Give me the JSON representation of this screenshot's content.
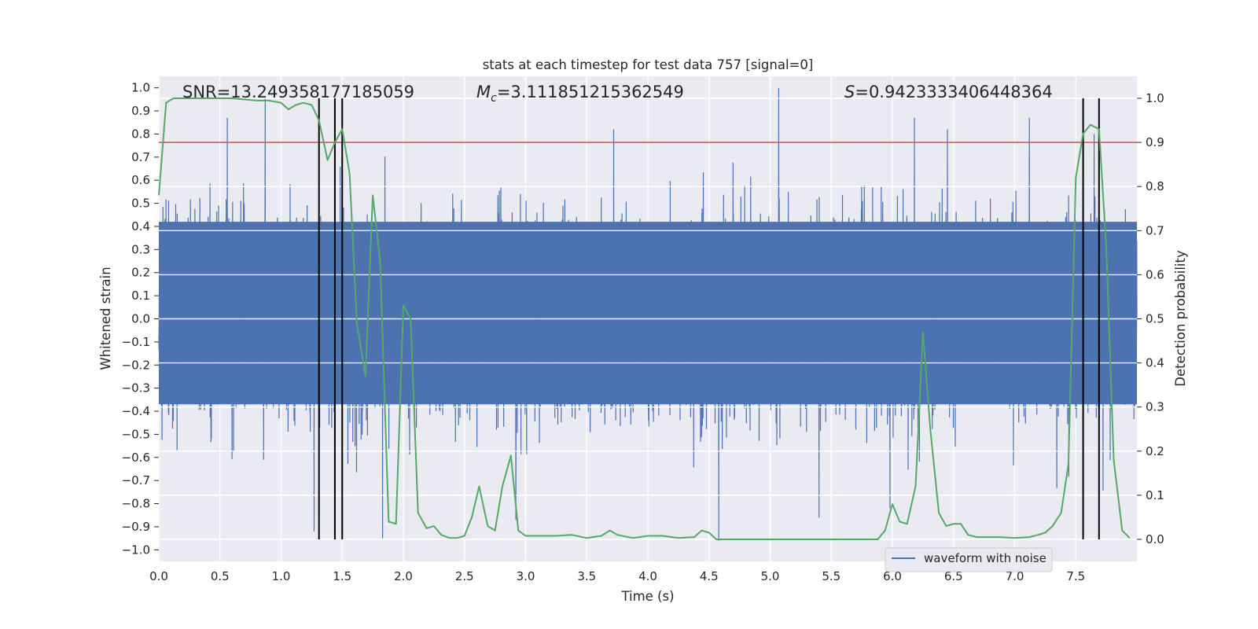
{
  "chart_data": {
    "type": "line",
    "title": "stats at each timestep for test data 757 [signal=0]",
    "xlabel": "Time (s)",
    "ylabel_left": "Whitened strain",
    "ylabel_right": "Detection probability",
    "xlim": [
      0.0,
      8.0
    ],
    "ylim_left": [
      -1.05,
      1.05
    ],
    "ylim_right": [
      -0.05,
      1.05
    ],
    "x_ticks": [
      "0.0",
      "0.5",
      "1.0",
      "1.5",
      "2.0",
      "2.5",
      "3.0",
      "3.5",
      "4.0",
      "4.5",
      "5.0",
      "5.5",
      "6.0",
      "6.5",
      "7.0",
      "7.5"
    ],
    "y_ticks_left": [
      "1.0",
      "0.9",
      "0.8",
      "0.7",
      "0.6",
      "0.5",
      "0.4",
      "0.3",
      "0.2",
      "0.1",
      "0.0",
      "-0.1",
      "-0.2",
      "-0.3",
      "-0.4",
      "-0.5",
      "-0.6",
      "-0.7",
      "-0.8",
      "-0.9",
      "-1.0"
    ],
    "y_ticks_right": [
      "1.0",
      "0.9",
      "0.8",
      "0.7",
      "0.6",
      "0.5",
      "0.4",
      "0.3",
      "0.2",
      "0.1",
      "0.0"
    ],
    "annotations": {
      "snr": "SNR=13.249358177185059",
      "mc_symbol": "M",
      "mc_subscript": "c",
      "mc_value": "=3.111851215362549",
      "s_symbol": "S",
      "s_value": "=0.9423333406448364"
    },
    "threshold": {
      "value": 0.9,
      "axis": "right",
      "color": "#c44e52"
    },
    "vertical_markers": [
      1.31,
      1.44,
      1.5,
      7.56,
      7.69
    ],
    "series": [
      {
        "name": "waveform with noise",
        "axis": "left",
        "color": "#4c72b0",
        "kind": "dense-noise",
        "band": [
          -0.37,
          0.42
        ],
        "peaks": [
          [
            0.56,
            0.87
          ],
          [
            0.87,
            0.96
          ],
          [
            1.27,
            -0.92
          ],
          [
            1.5,
            -0.84
          ],
          [
            1.83,
            -0.95
          ],
          [
            2.92,
            -0.87
          ],
          [
            3.72,
            0.82
          ],
          [
            4.58,
            -0.96
          ],
          [
            5.07,
            1.0
          ],
          [
            5.4,
            -0.86
          ],
          [
            5.98,
            -0.82
          ],
          [
            6.18,
            0.87
          ],
          [
            6.45,
            0.82
          ],
          [
            7.12,
            0.87
          ],
          [
            7.56,
            0.77
          ],
          [
            7.65,
            0.8
          ]
        ]
      },
      {
        "name": "detection probability",
        "axis": "right",
        "color": "#55a868",
        "x": [
          0.0,
          0.06,
          0.12,
          0.2,
          0.4,
          0.6,
          0.8,
          0.9,
          1.0,
          1.06,
          1.12,
          1.18,
          1.25,
          1.31,
          1.38,
          1.44,
          1.5,
          1.56,
          1.62,
          1.69,
          1.75,
          1.81,
          1.88,
          1.94,
          2.0,
          2.06,
          2.12,
          2.19,
          2.25,
          2.31,
          2.38,
          2.44,
          2.5,
          2.56,
          2.62,
          2.69,
          2.75,
          2.81,
          2.88,
          2.94,
          3.0,
          3.12,
          3.25,
          3.38,
          3.5,
          3.62,
          3.69,
          3.75,
          3.88,
          4.0,
          4.12,
          4.25,
          4.38,
          4.44,
          4.5,
          4.56,
          4.62,
          4.75,
          5.0,
          5.5,
          5.88,
          5.94,
          6.0,
          6.06,
          6.12,
          6.19,
          6.25,
          6.31,
          6.38,
          6.44,
          6.5,
          6.56,
          6.62,
          6.69,
          6.75,
          6.88,
          7.0,
          7.12,
          7.19,
          7.25,
          7.31,
          7.38,
          7.44,
          7.5,
          7.56,
          7.62,
          7.69,
          7.75,
          7.81,
          7.88,
          7.94
        ],
        "values": [
          0.78,
          0.99,
          1.0,
          1.0,
          1.0,
          1.0,
          0.995,
          0.995,
          0.99,
          0.975,
          0.985,
          0.99,
          0.985,
          0.95,
          0.86,
          0.9,
          0.93,
          0.83,
          0.49,
          0.37,
          0.78,
          0.63,
          0.04,
          0.035,
          0.53,
          0.5,
          0.06,
          0.025,
          0.03,
          0.01,
          0.003,
          0.003,
          0.008,
          0.05,
          0.12,
          0.03,
          0.02,
          0.12,
          0.19,
          0.02,
          0.008,
          0.008,
          0.008,
          0.01,
          0.003,
          0.008,
          0.02,
          0.01,
          0.003,
          0.008,
          0.008,
          0.003,
          0.005,
          0.02,
          0.015,
          0.0,
          0.0,
          0.0,
          0.0,
          0.0,
          0.0,
          0.02,
          0.08,
          0.04,
          0.035,
          0.12,
          0.47,
          0.25,
          0.06,
          0.03,
          0.035,
          0.035,
          0.01,
          0.005,
          0.005,
          0.005,
          0.003,
          0.005,
          0.01,
          0.015,
          0.03,
          0.06,
          0.17,
          0.82,
          0.92,
          0.94,
          0.93,
          0.66,
          0.18,
          0.02,
          0.003
        ]
      }
    ],
    "legend": {
      "label": "waveform with noise",
      "placement": "lower-right"
    }
  }
}
